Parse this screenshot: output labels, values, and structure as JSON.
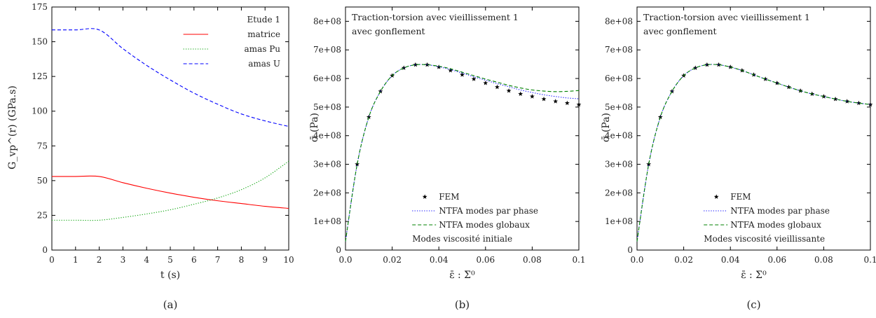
{
  "chart_data": [
    {
      "type": "line",
      "caption": "(a)",
      "xlabel": "t (s)",
      "ylabel": "G_vp^(r) (GPa.s)",
      "xlim": [
        0,
        10
      ],
      "ylim": [
        0,
        175
      ],
      "xticks": [
        0,
        1,
        2,
        3,
        4,
        5,
        6,
        7,
        8,
        9,
        10
      ],
      "yticks": [
        0,
        25,
        50,
        75,
        100,
        125,
        150,
        175
      ],
      "legend_title": "Etude 1",
      "legend_position": "top-right",
      "series": [
        {
          "name": "matrice",
          "color": "#ff0000",
          "style": "solid",
          "x": [
            0,
            1,
            2,
            3,
            4,
            5,
            6,
            7,
            8,
            9,
            10
          ],
          "y": [
            53,
            53,
            53,
            48.5,
            44.5,
            41,
            38,
            35.5,
            33.5,
            31.5,
            30
          ]
        },
        {
          "name": "amas Pu",
          "color": "#00a000",
          "style": "dotted",
          "x": [
            0,
            1,
            2,
            3,
            4,
            5,
            6,
            7,
            8,
            9,
            10
          ],
          "y": [
            21.5,
            21.5,
            21.5,
            23.5,
            26,
            29,
            33,
            37.5,
            43.5,
            52,
            64
          ]
        },
        {
          "name": "amas U",
          "color": "#0000ff",
          "style": "dashed",
          "x": [
            0,
            1,
            2,
            3,
            4,
            5,
            6,
            7,
            8,
            9,
            10
          ],
          "y": [
            158.5,
            158.5,
            158.5,
            145,
            133,
            122.5,
            113,
            105,
            98,
            93,
            89
          ]
        }
      ]
    },
    {
      "type": "line",
      "caption": "(b)",
      "annotation": [
        "Traction-torsion avec vieillissement 1",
        "avec gonflement"
      ],
      "legend_note": "Modes viscosité initiale",
      "xlabel": "ε̄ : Σ⁰",
      "ylabel": "σ̄ (Pa)",
      "xlim": [
        0,
        0.1
      ],
      "ylim": [
        0,
        850000000
      ],
      "xticks": [
        0.0,
        0.02,
        0.04,
        0.06,
        0.08,
        0.1
      ],
      "xtick_labels": [
        "0.0",
        "0.02",
        "0.04",
        "0.06",
        "0.08",
        "0.1"
      ],
      "yticks": [
        0,
        100000000,
        200000000,
        300000000,
        400000000,
        500000000,
        600000000,
        700000000,
        800000000
      ],
      "ytick_labels": [
        "0",
        "1e+08",
        "2e+08",
        "3e+08",
        "4e+08",
        "5e+08",
        "6e+08",
        "7e+08",
        "8e+08"
      ],
      "legend_position": "bottom-right",
      "series": [
        {
          "name": "FEM",
          "color": "#000000",
          "style": "star",
          "x": [
            0.005,
            0.01,
            0.015,
            0.02,
            0.025,
            0.03,
            0.035,
            0.04,
            0.045,
            0.05,
            0.055,
            0.06,
            0.065,
            0.07,
            0.075,
            0.08,
            0.085,
            0.09,
            0.095,
            0.1
          ],
          "y": [
            300000000,
            465000000,
            555000000,
            610000000,
            637000000,
            648000000,
            648000000,
            640000000,
            628000000,
            613000000,
            598000000,
            584000000,
            570000000,
            557000000,
            546000000,
            537000000,
            528000000,
            520000000,
            514000000,
            509000000
          ]
        },
        {
          "name": "NTFA modes par phase",
          "color": "#0000ff",
          "style": "dotted",
          "x": [
            0,
            0.005,
            0.01,
            0.015,
            0.02,
            0.025,
            0.03,
            0.035,
            0.04,
            0.045,
            0.05,
            0.055,
            0.06,
            0.065,
            0.07,
            0.075,
            0.08,
            0.085,
            0.09,
            0.095,
            0.1
          ],
          "y": [
            30000000,
            300000000,
            465000000,
            555000000,
            610000000,
            637000000,
            648000000,
            648000000,
            641000000,
            631000000,
            619000000,
            606000000,
            594000000,
            582000000,
            571000000,
            560000000,
            551000000,
            543000000,
            537000000,
            532000000,
            529000000
          ]
        },
        {
          "name": "NTFA modes globaux",
          "color": "#008000",
          "style": "dashed",
          "x": [
            0,
            0.005,
            0.01,
            0.015,
            0.02,
            0.025,
            0.03,
            0.035,
            0.04,
            0.045,
            0.05,
            0.055,
            0.06,
            0.065,
            0.07,
            0.075,
            0.08,
            0.085,
            0.09,
            0.095,
            0.1
          ],
          "y": [
            30000000,
            300000000,
            465000000,
            555000000,
            610000000,
            637000000,
            648000000,
            648000000,
            643000000,
            634000000,
            622000000,
            610000000,
            598000000,
            587000000,
            576000000,
            567000000,
            560000000,
            556000000,
            554000000,
            555000000,
            558000000
          ]
        }
      ]
    },
    {
      "type": "line",
      "caption": "(c)",
      "annotation": [
        "Traction-torsion avec vieillissement 1",
        "avec gonflement"
      ],
      "legend_note": "Modes viscosité vieillissante",
      "xlabel": "ε̄ : Σ⁰",
      "ylabel": "σ̄ (Pa)",
      "xlim": [
        0,
        0.1
      ],
      "ylim": [
        0,
        850000000
      ],
      "xticks": [
        0.0,
        0.02,
        0.04,
        0.06,
        0.08,
        0.1
      ],
      "xtick_labels": [
        "0.0",
        "0.02",
        "0.04",
        "0.06",
        "0.08",
        "0.1"
      ],
      "yticks": [
        0,
        100000000,
        200000000,
        300000000,
        400000000,
        500000000,
        600000000,
        700000000,
        800000000
      ],
      "ytick_labels": [
        "0",
        "1e+08",
        "2e+08",
        "3e+08",
        "4e+08",
        "5e+08",
        "6e+08",
        "7e+08",
        "8e+08"
      ],
      "legend_position": "bottom-right",
      "series": [
        {
          "name": "FEM",
          "color": "#000000",
          "style": "star",
          "x": [
            0.005,
            0.01,
            0.015,
            0.02,
            0.025,
            0.03,
            0.035,
            0.04,
            0.045,
            0.05,
            0.055,
            0.06,
            0.065,
            0.07,
            0.075,
            0.08,
            0.085,
            0.09,
            0.095,
            0.1
          ],
          "y": [
            300000000,
            465000000,
            555000000,
            610000000,
            637000000,
            648000000,
            648000000,
            640000000,
            628000000,
            613000000,
            598000000,
            584000000,
            570000000,
            557000000,
            546000000,
            537000000,
            528000000,
            520000000,
            514000000,
            509000000
          ]
        },
        {
          "name": "NTFA modes par phase",
          "color": "#0000ff",
          "style": "dotted",
          "x": [
            0,
            0.005,
            0.01,
            0.015,
            0.02,
            0.025,
            0.03,
            0.035,
            0.04,
            0.045,
            0.05,
            0.055,
            0.06,
            0.065,
            0.07,
            0.075,
            0.08,
            0.085,
            0.09,
            0.095,
            0.1
          ],
          "y": [
            30000000,
            300000000,
            465000000,
            555000000,
            610000000,
            637000000,
            648000000,
            648000000,
            640000000,
            628000000,
            613000000,
            598000000,
            584000000,
            570000000,
            557000000,
            546000000,
            537000000,
            528000000,
            520000000,
            514000000,
            509000000
          ]
        },
        {
          "name": "NTFA modes globaux",
          "color": "#008000",
          "style": "dashed",
          "x": [
            0,
            0.005,
            0.01,
            0.015,
            0.02,
            0.025,
            0.03,
            0.035,
            0.04,
            0.045,
            0.05,
            0.055,
            0.06,
            0.065,
            0.07,
            0.075,
            0.08,
            0.085,
            0.09,
            0.095,
            0.1
          ],
          "y": [
            30000000,
            300000000,
            465000000,
            555000000,
            610000000,
            637000000,
            648000000,
            648000000,
            640000000,
            628000000,
            613000000,
            598000000,
            584000000,
            570000000,
            557000000,
            546000000,
            537000000,
            528000000,
            520000000,
            514000000,
            509000000
          ]
        }
      ]
    }
  ]
}
